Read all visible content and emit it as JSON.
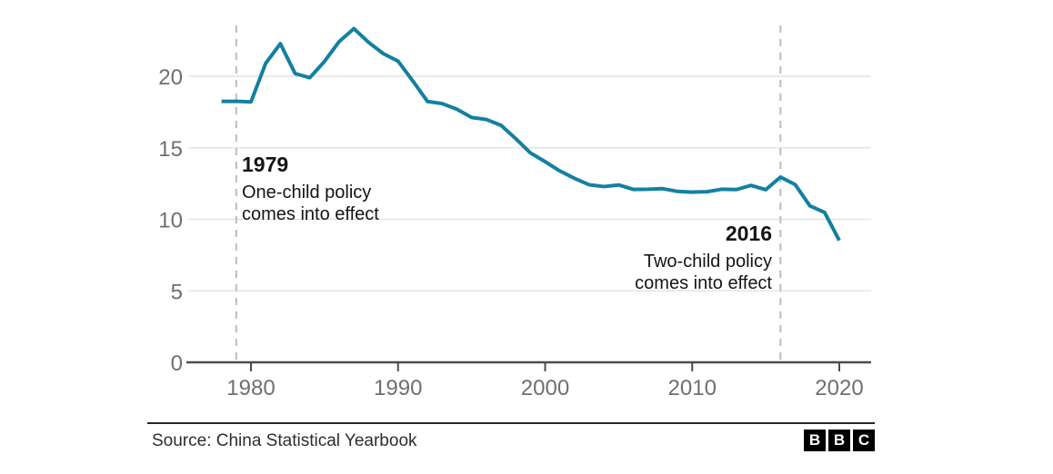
{
  "chart_data": {
    "type": "line",
    "title": "",
    "xlabel": "",
    "ylabel": "",
    "x": [
      1978,
      1979,
      1980,
      1981,
      1982,
      1983,
      1984,
      1985,
      1986,
      1987,
      1988,
      1989,
      1990,
      1991,
      1992,
      1993,
      1994,
      1995,
      1996,
      1997,
      1998,
      1999,
      2000,
      2001,
      2002,
      2003,
      2004,
      2005,
      2006,
      2007,
      2008,
      2009,
      2010,
      2011,
      2012,
      2013,
      2014,
      2015,
      2016,
      2017,
      2018,
      2019,
      2020
    ],
    "values": [
      18.25,
      18.25,
      18.21,
      20.91,
      22.28,
      20.19,
      19.9,
      21.04,
      22.43,
      23.33,
      22.37,
      21.58,
      21.06,
      19.68,
      18.24,
      18.09,
      17.7,
      17.12,
      16.98,
      16.57,
      15.64,
      14.64,
      14.03,
      13.38,
      12.86,
      12.41,
      12.29,
      12.4,
      12.09,
      12.1,
      12.14,
      11.95,
      11.9,
      11.93,
      12.1,
      12.08,
      12.37,
      12.07,
      12.95,
      12.43,
      10.94,
      10.48,
      8.52
    ],
    "ylim": [
      0,
      24
    ],
    "yticks": [
      0,
      5,
      10,
      15,
      20
    ],
    "xticks": [
      1980,
      1990,
      2000,
      2010,
      2020
    ],
    "grid": "horizontal",
    "legend": "none",
    "annotations": [
      {
        "year": 1979,
        "title": "1979",
        "lines": [
          "One-child policy",
          "comes into effect"
        ],
        "align": "left"
      },
      {
        "year": 2016,
        "title": "2016",
        "lines": [
          "Two-child policy",
          "comes into effect"
        ],
        "align": "right"
      }
    ]
  },
  "colors": {
    "line": "#1380A1",
    "gridline": "#e4e4e4",
    "axis": "#4d4d4d",
    "tick_label": "#6f6f6f",
    "dashed_line": "#bcbcbc",
    "annotation_text": "#141414",
    "logo_bg": "#000000",
    "logo_text": "#ffffff"
  },
  "footer": {
    "source": "Source: China Statistical Yearbook",
    "logo_letters": [
      "B",
      "B",
      "C"
    ]
  }
}
